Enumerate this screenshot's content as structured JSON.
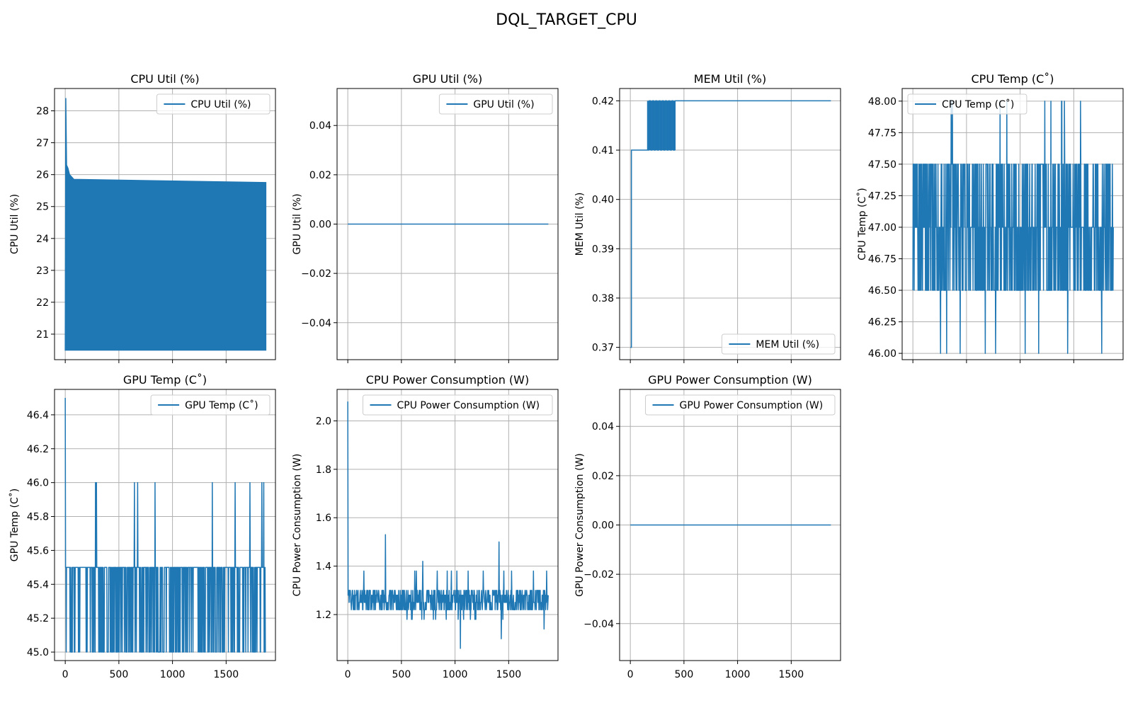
{
  "figure": {
    "title": "DQL_TARGET_CPU"
  },
  "colors": {
    "series": "#1f77b4",
    "grid": "#b0b0b0",
    "axes": "#000000"
  },
  "chart_data": [
    {
      "type": "line",
      "title": "CPU Util (%)",
      "ylabel": "CPU Util (%)",
      "xlim": [
        -100,
        1960
      ],
      "ylim": [
        20.2,
        28.7
      ],
      "yticks": [
        "21",
        "22",
        "23",
        "24",
        "25",
        "26",
        "27",
        "28"
      ],
      "xticks": [
        "0",
        "500",
        "1000",
        "1500"
      ],
      "show_xticklabels": false,
      "legend": {
        "placement": "top-right",
        "label": "CPU Util (%)"
      },
      "grid": true,
      "series": [
        {
          "name": "CPU Util (%)",
          "style": "band",
          "x_range": [
            0,
            1870
          ],
          "spike": [
            [
              0,
              20.5
            ],
            [
              5,
              28.4
            ],
            [
              12,
              26.3
            ],
            [
              25,
              26.2
            ],
            [
              40,
              26.0
            ],
            [
              80,
              25.85
            ]
          ],
          "upper": 25.75,
          "lower": 20.5
        }
      ]
    },
    {
      "type": "line",
      "title": "GPU Util (%)",
      "ylabel": "GPU Util (%)",
      "xlim": [
        -100,
        1960
      ],
      "ylim": [
        -0.055,
        0.055
      ],
      "yticks": [
        "0.04",
        "0.02",
        "0.00",
        "−0.02",
        "−0.04"
      ],
      "xticks": [
        "0",
        "500",
        "1000",
        "1500"
      ],
      "show_xticklabels": false,
      "legend": {
        "placement": "top-right",
        "label": "GPU Util (%)"
      },
      "grid": true,
      "series": [
        {
          "name": "GPU Util (%)",
          "x": [
            0,
            1870
          ],
          "y": [
            0,
            0
          ]
        }
      ]
    },
    {
      "type": "line",
      "title": "MEM Util (%)",
      "ylabel": "MEM Util (%)",
      "xlim": [
        -100,
        1960
      ],
      "ylim": [
        0.3675,
        0.4225
      ],
      "yticks": [
        "0.42",
        "0.41",
        "0.40",
        "0.39",
        "0.38",
        "0.37"
      ],
      "xticks": [
        "0",
        "500",
        "1000",
        "1500"
      ],
      "show_xticklabels": false,
      "legend": {
        "placement": "bottom-right",
        "label": "MEM Util (%)"
      },
      "grid": true,
      "series": [
        {
          "name": "MEM Util (%)",
          "style": "toggle",
          "x": [
            0,
            10,
            160,
            175,
            190,
            205,
            220,
            235,
            250,
            265,
            280,
            295,
            310,
            325,
            340,
            355,
            370,
            385,
            400,
            415,
            420,
            1870
          ],
          "y": [
            0.37,
            0.41,
            0.41,
            0.42,
            0.41,
            0.42,
            0.41,
            0.42,
            0.41,
            0.42,
            0.41,
            0.42,
            0.41,
            0.42,
            0.41,
            0.42,
            0.41,
            0.42,
            0.41,
            0.42,
            0.42,
            0.42
          ]
        }
      ]
    },
    {
      "type": "line",
      "title": "CPU Temp (C˚)",
      "ylabel": "CPU Temp (C˚)",
      "xlim": [
        -100,
        1960
      ],
      "ylim": [
        45.95,
        48.1
      ],
      "yticks": [
        "48.00",
        "47.75",
        "47.50",
        "47.25",
        "47.00",
        "46.75",
        "46.50",
        "46.25",
        "46.00"
      ],
      "xticks": [
        "0",
        "500",
        "1000",
        "1500"
      ],
      "show_xticklabels": false,
      "legend": {
        "placement": "top-left",
        "label": "CPU Temp (C˚)"
      },
      "grid": true,
      "series": [
        {
          "name": "CPU Temp (C˚)",
          "style": "noise",
          "seed": 7,
          "n": 1870,
          "levels": [
            46.5,
            47.0,
            47.5
          ],
          "rare_high": 48.0,
          "rare_low": 46.0,
          "p_high": 0.012,
          "p_low": 0.012
        }
      ]
    },
    {
      "type": "line",
      "title": "GPU Temp (C˚)",
      "ylabel": "GPU Temp (C˚)",
      "xlim": [
        -100,
        1960
      ],
      "ylim": [
        44.95,
        46.55
      ],
      "yticks": [
        "46.4",
        "46.2",
        "46.0",
        "45.8",
        "45.6",
        "45.4",
        "45.2",
        "45.0"
      ],
      "xticks": [
        "0",
        "500",
        "1000",
        "1500"
      ],
      "show_xticklabels": true,
      "legend": {
        "placement": "top-right",
        "label": "GPU Temp (C˚)"
      },
      "grid": true,
      "series": [
        {
          "name": "GPU Temp (C˚)",
          "style": "noise",
          "seed": 11,
          "n": 1870,
          "levels": [
            45.5,
            45.5,
            45.5,
            45.0
          ],
          "rare_high": 46.0,
          "rare_low": 45.0,
          "p_high": 0.02,
          "p_low": 0.04,
          "start": 46.5
        }
      ]
    },
    {
      "type": "line",
      "title": "CPU Power Consumption (W)",
      "ylabel": "CPU Power Consumption (W)",
      "xlim": [
        -100,
        1960
      ],
      "ylim": [
        1.01,
        2.13
      ],
      "yticks": [
        "2.0",
        "1.8",
        "1.6",
        "1.4",
        "1.2"
      ],
      "xticks": [
        "0",
        "500",
        "1000",
        "1500"
      ],
      "show_xticklabels": true,
      "legend": {
        "placement": "top-right",
        "label": "CPU Power Consumption (W)"
      },
      "grid": true,
      "series": [
        {
          "name": "CPU Power Consumption (W)",
          "style": "noise",
          "seed": 3,
          "n": 1870,
          "levels": [
            1.22,
            1.25,
            1.28,
            1.3
          ],
          "rare_high": 1.38,
          "rare_low": 1.18,
          "p_high": 0.01,
          "p_low": 0.02,
          "start": 2.08,
          "spikes": [
            [
              350,
              1.53
            ],
            [
              700,
              1.42
            ],
            [
              1050,
              1.06
            ],
            [
              1410,
              1.5
            ],
            [
              1430,
              1.1
            ],
            [
              150,
              1.38
            ],
            [
              1830,
              1.14
            ]
          ]
        }
      ]
    },
    {
      "type": "line",
      "title": "GPU Power Consumption (W)",
      "ylabel": "GPU Power Consumption (W)",
      "xlim": [
        -100,
        1960
      ],
      "ylim": [
        -0.055,
        0.055
      ],
      "yticks": [
        "0.04",
        "0.02",
        "0.00",
        "−0.02",
        "−0.04"
      ],
      "xticks": [
        "0",
        "500",
        "1000",
        "1500"
      ],
      "show_xticklabels": true,
      "legend": {
        "placement": "top-right",
        "label": "GPU Power Consumption (W)"
      },
      "grid": true,
      "series": [
        {
          "name": "GPU Power Consumption (W)",
          "x": [
            0,
            1870
          ],
          "y": [
            0,
            0
          ]
        }
      ]
    }
  ]
}
